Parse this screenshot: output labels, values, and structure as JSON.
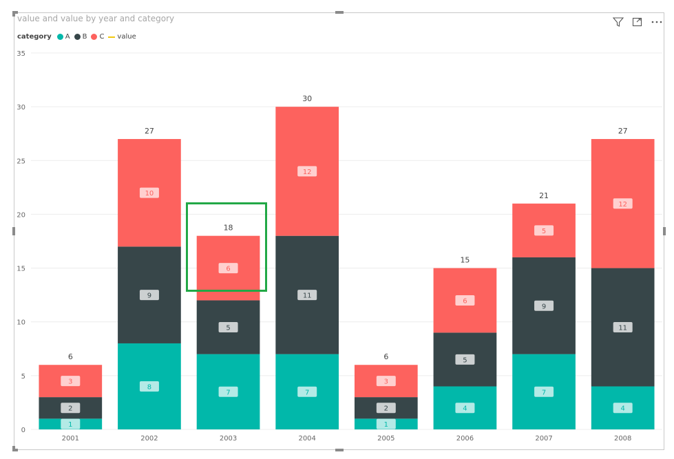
{
  "visual": {
    "title": "value and value by year and category",
    "legend": {
      "label": "category",
      "items": [
        {
          "name": "A",
          "color": "#01B8AA",
          "kind": "dot"
        },
        {
          "name": "B",
          "color": "#374649",
          "kind": "dot"
        },
        {
          "name": "C",
          "color": "#FD625E",
          "kind": "dot"
        },
        {
          "name": "value",
          "color": "#F2C80F",
          "kind": "line"
        }
      ]
    },
    "toolbar": {
      "filter_icon": "filter-icon",
      "focus_icon": "focus-mode-icon",
      "more_icon": "more-options-icon"
    }
  },
  "chart_data": {
    "type": "bar",
    "stacked": true,
    "categories": [
      "2001",
      "2002",
      "2003",
      "2004",
      "2005",
      "2006",
      "2007",
      "2008"
    ],
    "series": [
      {
        "name": "A",
        "color": "#01B8AA",
        "values": [
          1,
          8,
          7,
          7,
          1,
          4,
          7,
          4
        ]
      },
      {
        "name": "B",
        "color": "#374649",
        "values": [
          2,
          9,
          5,
          11,
          2,
          5,
          9,
          11
        ]
      },
      {
        "name": "C",
        "color": "#FD625E",
        "values": [
          3,
          10,
          6,
          12,
          3,
          6,
          5,
          12
        ]
      }
    ],
    "totals": [
      6,
      27,
      18,
      30,
      6,
      15,
      21,
      27
    ],
    "yticks": [
      "0",
      "5",
      "10",
      "15",
      "20",
      "25",
      "30",
      "35"
    ],
    "ylim": [
      0,
      35
    ],
    "grid": true,
    "legend_position": "top-left",
    "highlighted_category": "2003"
  }
}
